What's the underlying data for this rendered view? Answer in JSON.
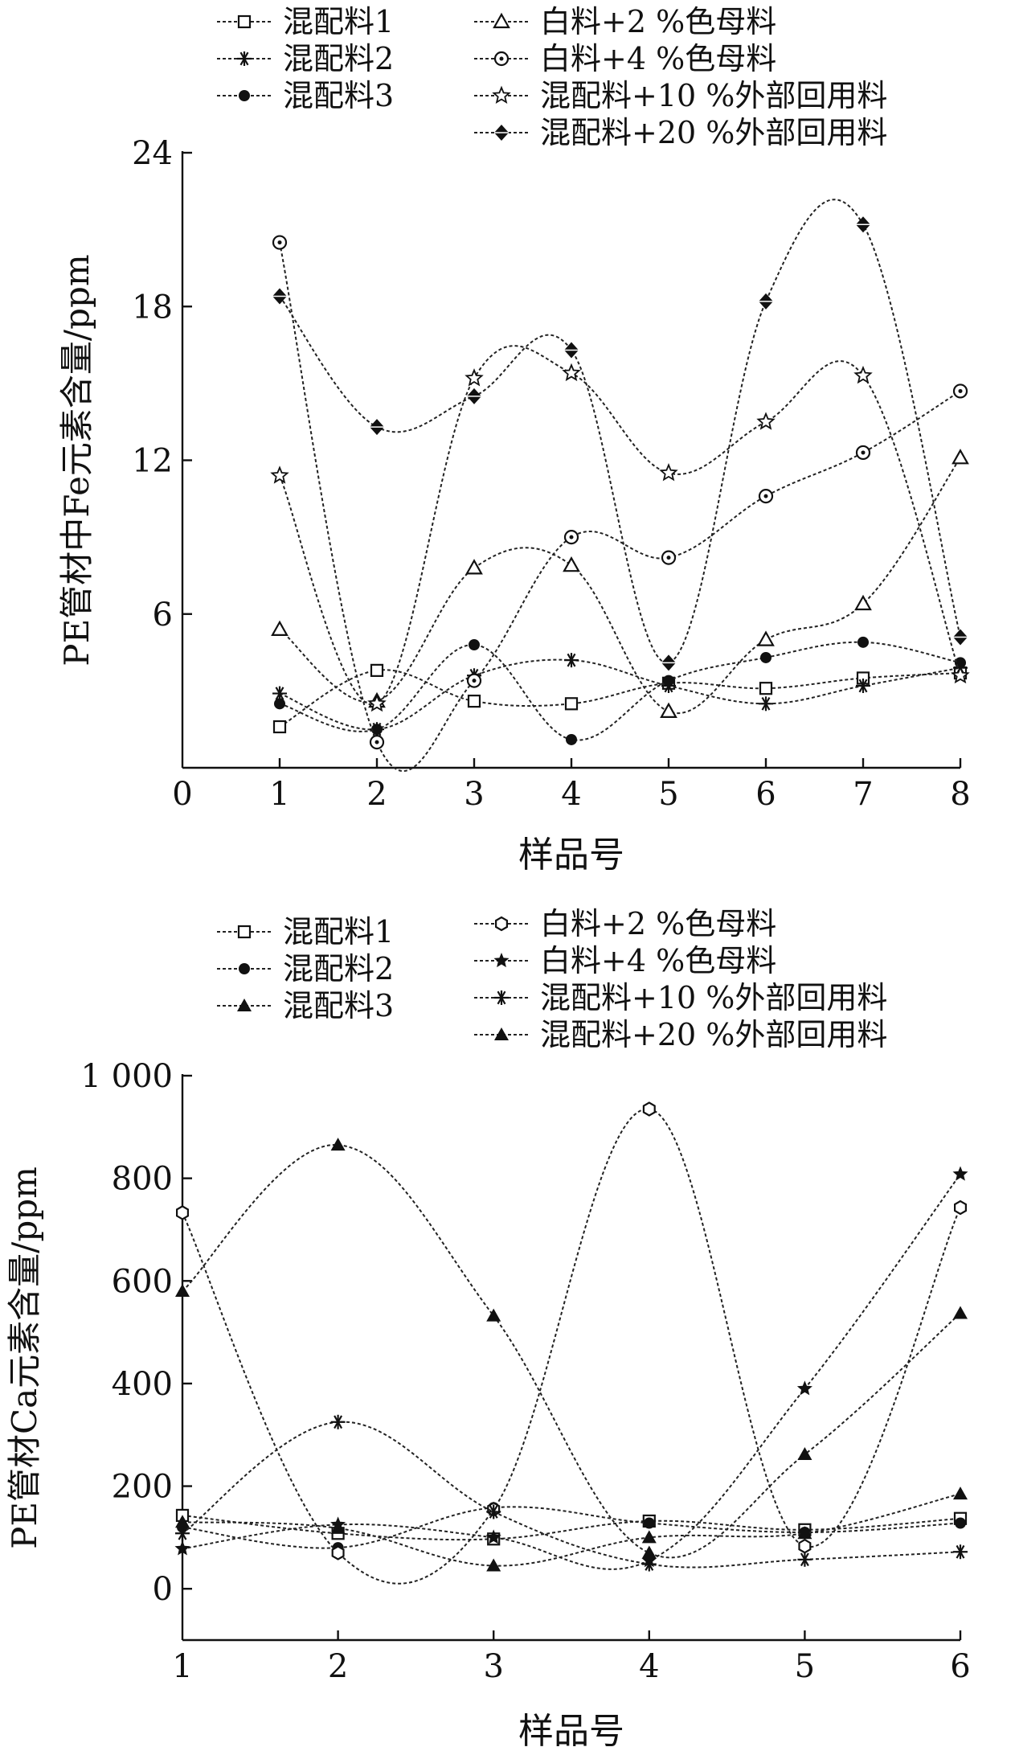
{
  "chart_data": [
    {
      "type": "line",
      "ylabel": "PE管材中Fe元素含量/ppm",
      "xlabel": "样品号",
      "xlim": [
        0,
        8
      ],
      "ylim": [
        0,
        24
      ],
      "x_ticks": [
        "0",
        "1",
        "2",
        "3",
        "4",
        "5",
        "6",
        "7",
        "8"
      ],
      "y_ticks": [
        "6",
        "12",
        "18",
        "24"
      ],
      "x": [
        1,
        2,
        3,
        4,
        5,
        6,
        7,
        8
      ],
      "grid": false,
      "legend_position": "top",
      "series": [
        {
          "name": "混配料1",
          "marker": "square-open",
          "values": [
            1.6,
            3.8,
            2.6,
            2.5,
            3.3,
            3.1,
            3.5,
            3.7
          ]
        },
        {
          "name": "混配料2",
          "marker": "asterisk",
          "values": [
            2.9,
            1.5,
            3.6,
            4.2,
            3.2,
            2.5,
            3.2,
            3.9
          ]
        },
        {
          "name": "混配料3",
          "marker": "circle-filled",
          "values": [
            2.5,
            1.5,
            4.8,
            1.1,
            3.4,
            4.3,
            4.9,
            4.1
          ]
        },
        {
          "name": "白料+2 %色母料",
          "marker": "triangle-open",
          "values": [
            5.4,
            2.6,
            7.8,
            7.9,
            2.2,
            5.0,
            6.4,
            12.1
          ]
        },
        {
          "name": "白料+4 %色母料",
          "marker": "circle-dot",
          "values": [
            20.5,
            1.0,
            3.4,
            9.0,
            8.2,
            10.6,
            12.3,
            14.7
          ]
        },
        {
          "name": "混配料+10 %外部回用料",
          "marker": "star-open",
          "values": [
            11.4,
            2.5,
            15.2,
            15.4,
            11.5,
            13.5,
            15.3,
            3.6
          ]
        },
        {
          "name": "混配料+20 %外部回用料",
          "marker": "diamond-filled",
          "values": [
            18.4,
            13.3,
            14.5,
            16.3,
            4.1,
            18.2,
            21.2,
            5.1
          ]
        }
      ]
    },
    {
      "type": "line",
      "ylabel": "PE管材Ca元素含量/ppm",
      "xlabel": "样品号",
      "xlim": [
        1,
        6
      ],
      "ylim": [
        -100,
        1000
      ],
      "x_ticks": [
        "1",
        "2",
        "3",
        "4",
        "5",
        "6"
      ],
      "y_ticks": [
        "0",
        "200",
        "400",
        "600",
        "800",
        "1 000"
      ],
      "x": [
        1,
        2,
        3,
        4,
        5,
        6
      ],
      "grid": false,
      "legend_position": "top",
      "series": [
        {
          "name": "混配料1",
          "marker": "square-open",
          "values": [
            143,
            108,
            97,
            132,
            115,
            137
          ]
        },
        {
          "name": "混配料2",
          "marker": "circle-filled",
          "values": [
            120,
            80,
            158,
            128,
            110,
            128
          ]
        },
        {
          "name": "混配料3",
          "marker": "triangle-filled",
          "values": [
            130,
            118,
            45,
            100,
            108,
            185
          ]
        },
        {
          "name": "白料+2 %色母料",
          "marker": "hexagon-open",
          "values": [
            733,
            70,
            155,
            935,
            83,
            743
          ]
        },
        {
          "name": "白料+4 %色母料",
          "marker": "star-filled",
          "values": [
            78,
            125,
            100,
            55,
            390,
            808
          ]
        },
        {
          "name": "混配料+10 %外部回用料",
          "marker": "asterisk",
          "values": [
            108,
            325,
            150,
            48,
            57,
            72
          ]
        },
        {
          "name": "混配料+20 %外部回用料",
          "marker": "triangle-filled",
          "values": [
            580,
            865,
            532,
            70,
            262,
            537
          ]
        }
      ]
    }
  ]
}
